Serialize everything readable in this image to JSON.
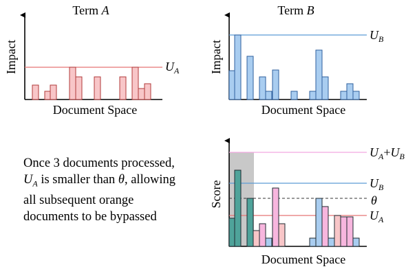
{
  "panel_a": {
    "title_prefix": "Term ",
    "title_var": "A",
    "ylabel": "Impact",
    "xlabel": "Document Space",
    "bound_label_main": "U",
    "bound_label_sub": "A",
    "colors": {
      "fill": "#f8c6c8",
      "stroke": "#b03a3a",
      "bound": "#e57373"
    }
  },
  "panel_b": {
    "title_prefix": "Term ",
    "title_var": "B",
    "ylabel": "Impact",
    "xlabel": "Document Space",
    "bound_label_main": "U",
    "bound_label_sub": "B",
    "colors": {
      "fill": "#a9cdf0",
      "stroke": "#2e5f9e",
      "bound": "#5b9bd5"
    }
  },
  "panel_c": {
    "ylabel": "Score",
    "xlabel": "Document Space",
    "label_sum": {
      "u1": "U",
      "s1": "A",
      "plus": "+",
      "u2": "U",
      "s2": "B"
    },
    "label_ub": {
      "u": "U",
      "s": "B"
    },
    "label_theta": "θ",
    "label_ua": {
      "u": "U",
      "s": "A"
    },
    "colors": {
      "processed_region": "#c8c8c8",
      "teal_fill": "#4fa39a",
      "pink_fill": "#f7b6de",
      "salmon_fill": "#f8c6c8",
      "blue_fill": "#a9cdf0",
      "sum_line": "#f2a7e0",
      "ub_line": "#5b9bd5",
      "ua_line": "#e57373",
      "theta_line": "#333333"
    }
  },
  "caption": {
    "line1": "Once 3 documents processed,",
    "line2_var": "U",
    "line2_sub": "A",
    "line2_rest": " is smaller than ",
    "line2_theta": "θ",
    "line2_end": ", allowing",
    "line3": "all subsequent orange",
    "line4": "documents to be bypassed"
  }
}
